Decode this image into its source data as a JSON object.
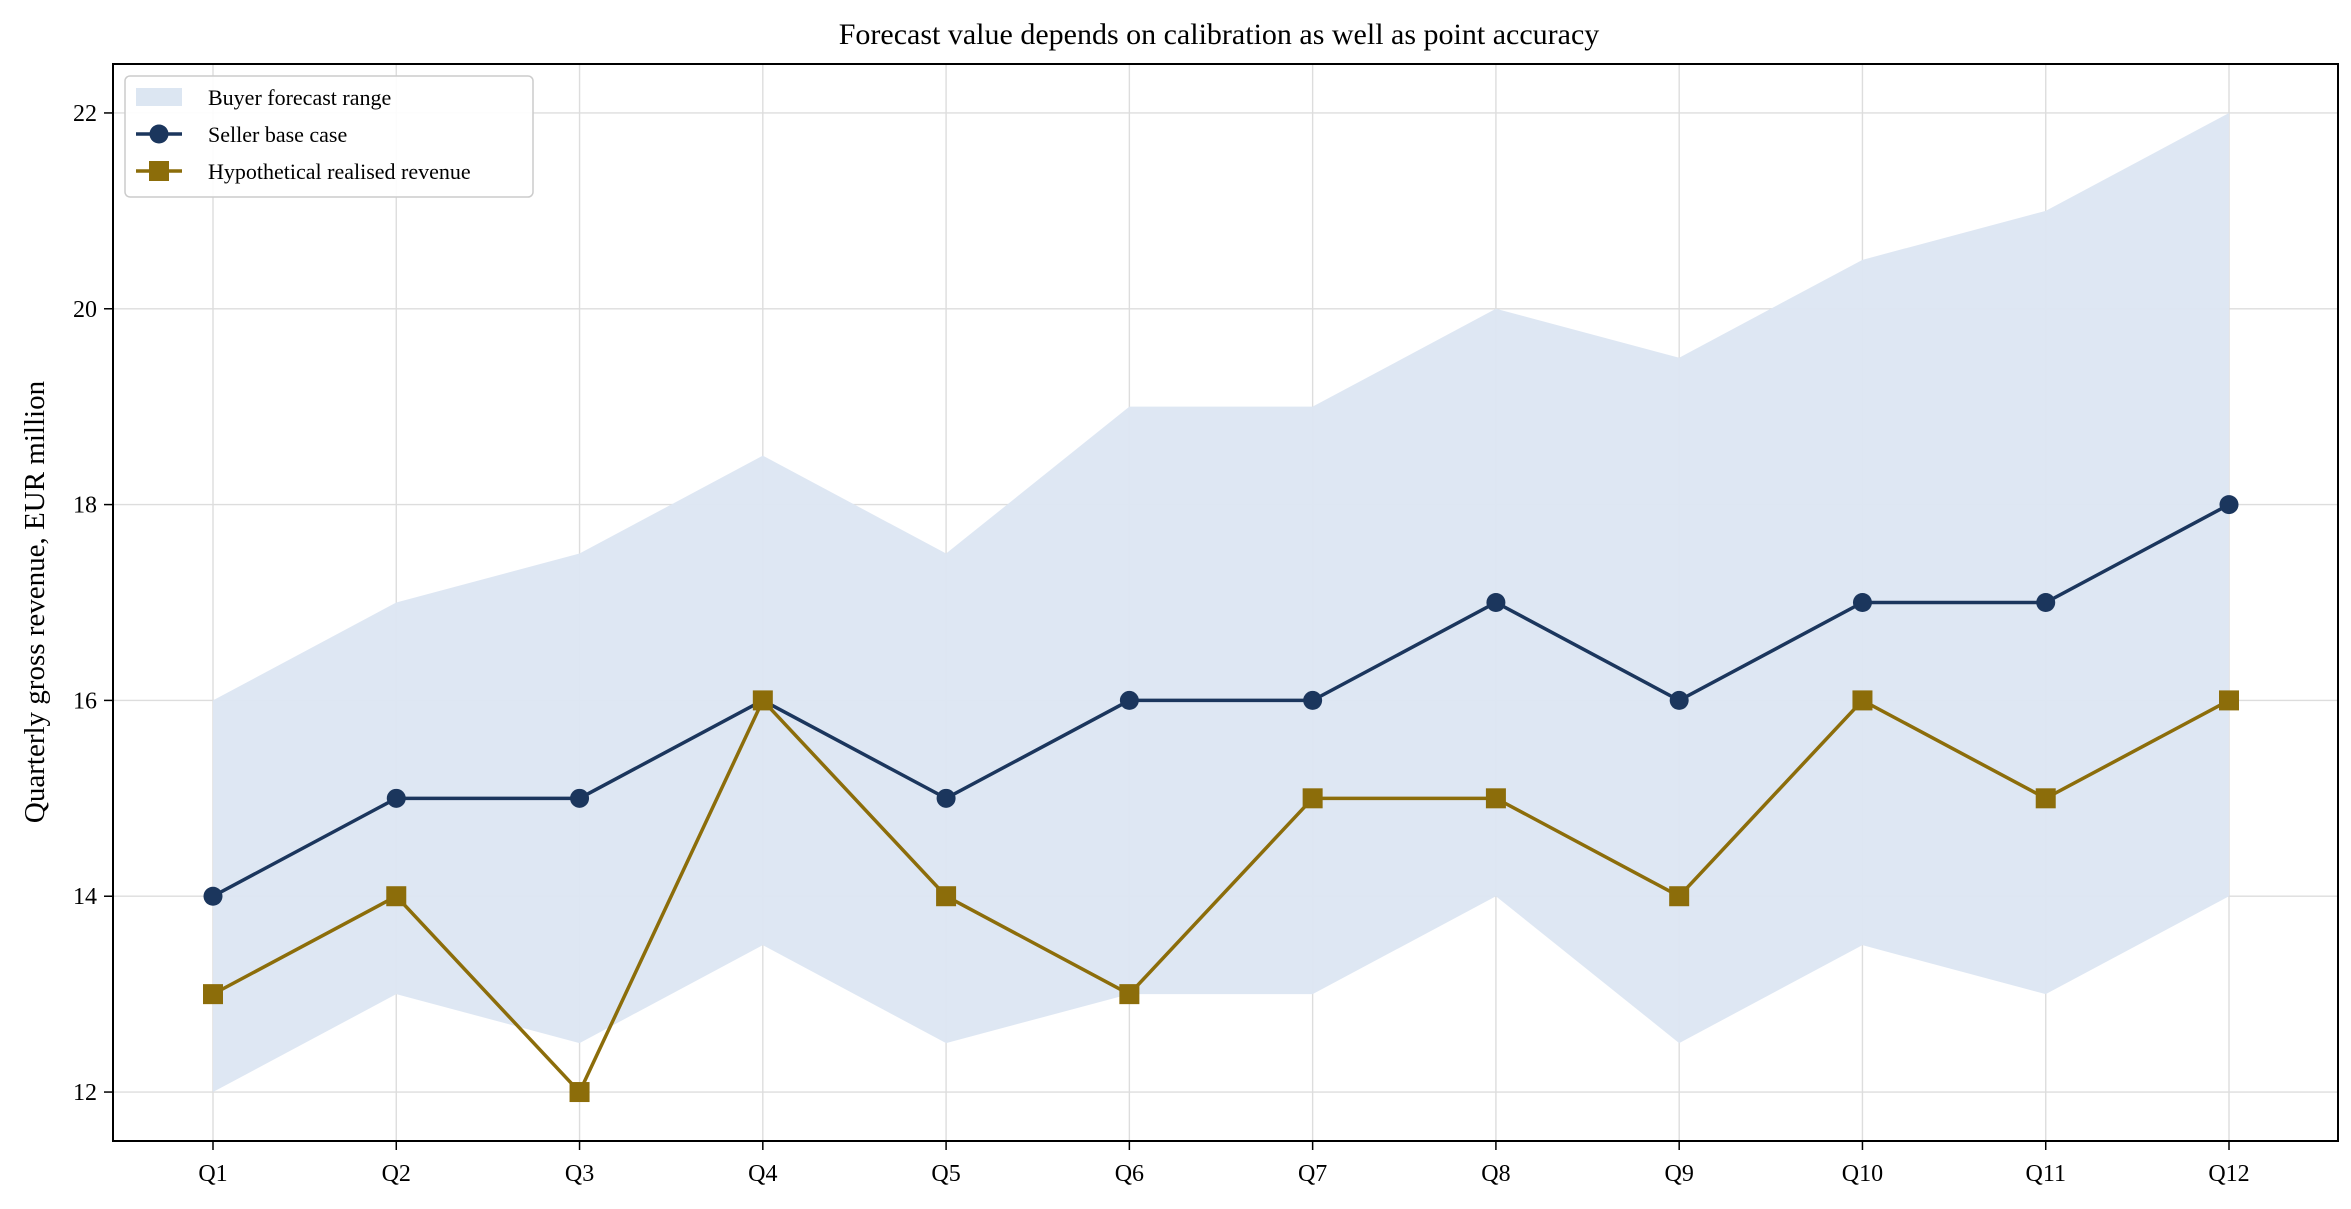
{
  "chart_data": {
    "type": "line",
    "title": "Forecast value depends on calibration as well as point accuracy",
    "xlabel": "",
    "ylabel": "Quarterly gross revenue, EUR million",
    "categories": [
      "Q1",
      "Q2",
      "Q3",
      "Q4",
      "Q5",
      "Q6",
      "Q7",
      "Q8",
      "Q9",
      "Q10",
      "Q11",
      "Q12"
    ],
    "ylim": [
      11.5,
      22.5
    ],
    "yticks": [
      12,
      14,
      16,
      18,
      20,
      22
    ],
    "grid": true,
    "legend_position": "top-left",
    "band": {
      "name": "Buyer forecast range",
      "lower": [
        12,
        13,
        12.5,
        13.5,
        12.5,
        13,
        13,
        14,
        12.5,
        13.5,
        13,
        14
      ],
      "upper": [
        16,
        17,
        17.5,
        18.5,
        17.5,
        19,
        19,
        20,
        19.5,
        20.5,
        21,
        22
      ],
      "color": "#dce6f2"
    },
    "series": [
      {
        "name": "Seller base case",
        "values": [
          14,
          15,
          15,
          16,
          15,
          16,
          16,
          17,
          16,
          17,
          17,
          18
        ],
        "color": "#1b365d",
        "marker": "circle"
      },
      {
        "name": "Hypothetical realised revenue",
        "values": [
          13,
          14,
          12,
          16,
          14,
          13,
          15,
          15,
          14,
          16,
          15,
          16
        ],
        "color": "#8c6d0a",
        "marker": "square"
      }
    ]
  }
}
